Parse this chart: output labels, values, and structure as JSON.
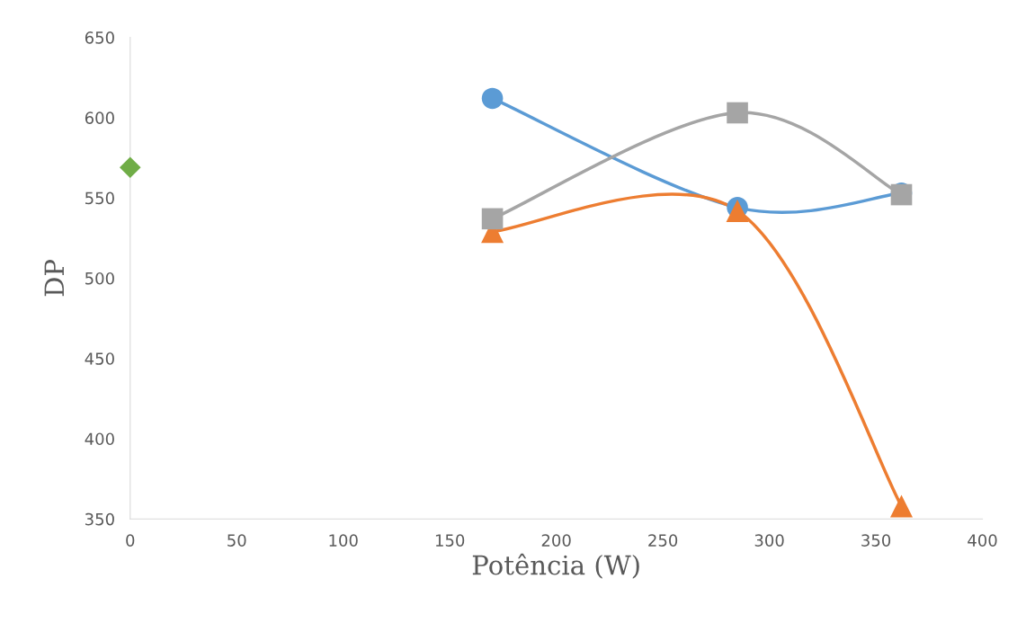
{
  "chart_data": {
    "type": "line",
    "xlabel": "Potência (W)",
    "ylabel": "DP",
    "xlim": [
      0,
      400
    ],
    "xticks": [
      0,
      50,
      100,
      150,
      200,
      250,
      300,
      350,
      400
    ],
    "ylim": [
      350,
      650
    ],
    "yticks": [
      350,
      400,
      450,
      500,
      550,
      600,
      650
    ],
    "grid": false,
    "legend": false,
    "series": [
      {
        "color": "#5b9bd5",
        "marker": "circle",
        "x": [
          170,
          285,
          362
        ],
        "values": [
          612,
          544,
          553
        ]
      },
      {
        "color": "#ed7d31",
        "marker": "triangle",
        "x": [
          170,
          285,
          362
        ],
        "values": [
          529,
          542,
          358
        ]
      },
      {
        "color": "#a5a5a5",
        "marker": "square",
        "x": [
          170,
          285,
          362
        ],
        "values": [
          537,
          603,
          552
        ]
      },
      {
        "type": "scatter",
        "color": "#70ad47",
        "marker": "diamond",
        "x": [
          0
        ],
        "values": [
          569
        ]
      }
    ]
  }
}
